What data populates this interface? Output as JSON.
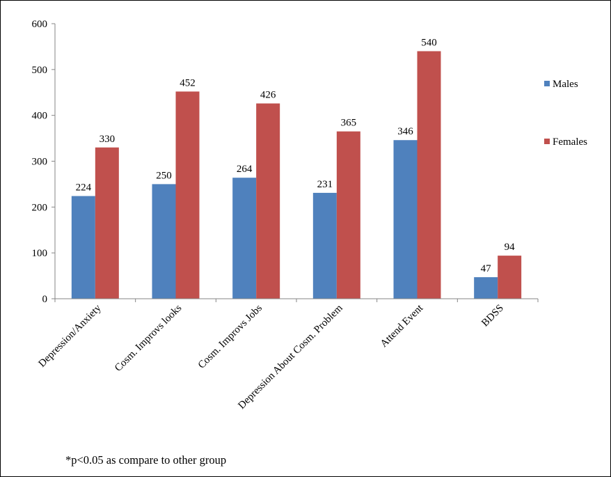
{
  "chart_data": {
    "type": "bar",
    "categories": [
      "Depression/Anxiety",
      "Cosm. Improvs looks",
      "Cosm. Improvs Jobs",
      "Depression About Cosm. Problem",
      "Attend Event",
      "BDSS"
    ],
    "series": [
      {
        "name": "Males",
        "color": "#4F81BD",
        "values": [
          224,
          250,
          264,
          231,
          346,
          47
        ]
      },
      {
        "name": "Females",
        "color": "#C0504D",
        "values": [
          330,
          452,
          426,
          365,
          540,
          94
        ]
      }
    ],
    "ylim": [
      0,
      600
    ],
    "yticks": [
      "0",
      "100",
      "200",
      "300",
      "400",
      "500",
      "600"
    ],
    "data_labels": true,
    "grid": false,
    "legend_position": "right",
    "footnote": "*p<0.05 as compare to other group"
  }
}
